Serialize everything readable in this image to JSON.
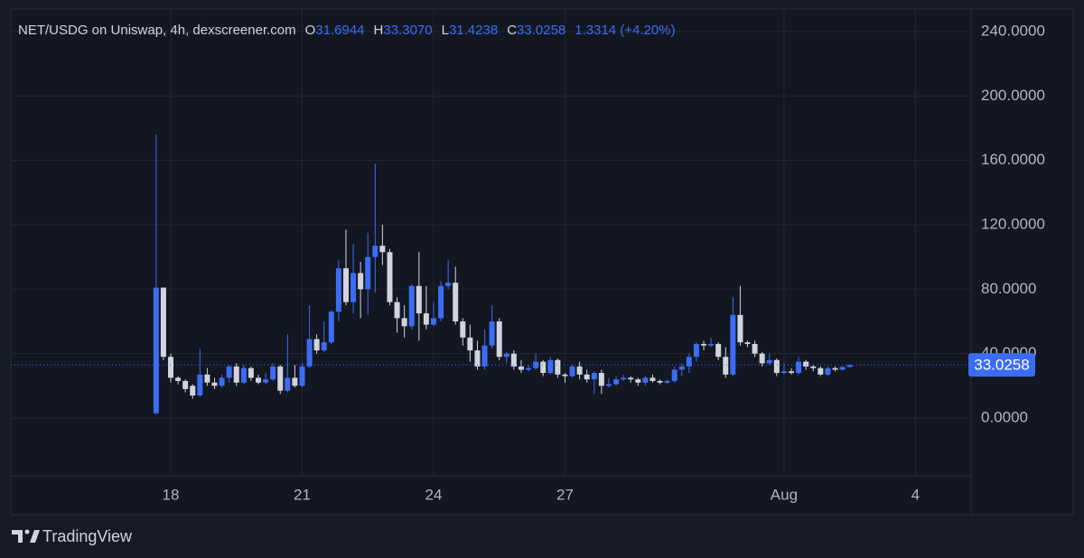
{
  "chart_data": {
    "type": "candlestick",
    "title": "NET/USDG on Uniswap, 4h, dexscreener.com",
    "ohlc_legend": [
      {
        "key": "O",
        "text": "31.6944"
      },
      {
        "key": "H",
        "text": "33.3070"
      },
      {
        "key": "L",
        "text": "31.4238"
      },
      {
        "key": "C",
        "text": "33.0258"
      }
    ],
    "change": "1.3314 (+4.20%)",
    "up_color": "#3b6cf5",
    "down_color": "#d1d4dc",
    "grid": true,
    "xlim": [
      14.35,
      36.27
    ],
    "xticks": [
      18,
      21,
      24,
      27,
      {
        "value": 32,
        "label": "Aug"
      },
      {
        "value": 35,
        "label": "4"
      }
    ],
    "ylim": [
      -35.9,
      254
    ],
    "yticks": [
      {
        "value": 0,
        "label": "0.0000"
      },
      {
        "value": 40,
        "label": "40.0000"
      },
      {
        "value": 80,
        "label": "80.0000"
      },
      {
        "value": 120,
        "label": "120.0000"
      },
      {
        "value": 160,
        "label": "160.0000"
      },
      {
        "value": 200,
        "label": "200.0000"
      },
      {
        "value": 240,
        "label": "240.0000"
      }
    ],
    "last_price": {
      "value": 33.0258,
      "label": "33.0258"
    },
    "x": [
      17.667,
      17.833,
      18,
      18.167,
      18.333,
      18.5,
      18.667,
      18.833,
      19,
      19.167,
      19.333,
      19.5,
      19.667,
      19.833,
      20,
      20.167,
      20.333,
      20.5,
      20.667,
      20.833,
      21,
      21.167,
      21.333,
      21.5,
      21.667,
      21.833,
      22,
      22.167,
      22.333,
      22.5,
      22.667,
      22.833,
      23,
      23.167,
      23.333,
      23.5,
      23.667,
      23.833,
      24,
      24.167,
      24.333,
      24.5,
      24.667,
      24.833,
      25,
      25.167,
      25.333,
      25.5,
      25.667,
      25.833,
      26,
      26.167,
      26.333,
      26.5,
      26.667,
      26.833,
      27,
      27.167,
      27.333,
      27.5,
      27.667,
      27.833,
      28,
      28.167,
      28.333,
      28.5,
      28.667,
      28.833,
      29,
      29.167,
      29.333,
      29.5,
      29.667,
      29.833,
      30,
      30.167,
      30.333,
      30.5,
      30.667,
      30.833,
      31,
      31.167,
      31.333,
      31.5,
      31.667,
      31.833,
      32,
      32.167,
      32.333,
      32.5,
      32.667,
      32.833,
      33,
      33.167,
      33.333,
      33.5
    ],
    "open": [
      3,
      81,
      38,
      25,
      23,
      20,
      14,
      27,
      22,
      20,
      25,
      32,
      22,
      31,
      25,
      22,
      24,
      32,
      17,
      25,
      20,
      32,
      49,
      42,
      47,
      66,
      93,
      72,
      90,
      80,
      100,
      107,
      103,
      72,
      62,
      57,
      82,
      65,
      58,
      62,
      82,
      84,
      60,
      50,
      42,
      32,
      45,
      60,
      38,
      40,
      32,
      30,
      31,
      35,
      28,
      36,
      27,
      26,
      32,
      27,
      24,
      28,
      20,
      21,
      24,
      25,
      24,
      22,
      25,
      23,
      22,
      23,
      30,
      32,
      38,
      46,
      45,
      46,
      38,
      27,
      64,
      47,
      46,
      40,
      34,
      36,
      28,
      29,
      28,
      35,
      32,
      31,
      27,
      31,
      30,
      31.6944
    ],
    "high": [
      176,
      81,
      40,
      26,
      24,
      21,
      43,
      31,
      25,
      27,
      33,
      34,
      33,
      32,
      27,
      28,
      34,
      33,
      52,
      33,
      34,
      70,
      52,
      60,
      67,
      98,
      117,
      108,
      97,
      115,
      158,
      120,
      105,
      75,
      70,
      83,
      103,
      82,
      72,
      85,
      98,
      94,
      62,
      58,
      48,
      55,
      70,
      62,
      41,
      42,
      36,
      33,
      40,
      36,
      38,
      37,
      28,
      33,
      35,
      30,
      29,
      30,
      25,
      26,
      27,
      26,
      25,
      26,
      27,
      24,
      24,
      32,
      34,
      40,
      47,
      48,
      50,
      47,
      44,
      75,
      82,
      48,
      48,
      41,
      40,
      37,
      34,
      31,
      38,
      36,
      33,
      32,
      32,
      32,
      32,
      33.307
    ],
    "low": [
      2,
      36,
      22,
      21,
      16,
      12,
      13,
      20,
      18,
      19,
      22,
      20,
      21,
      23,
      21,
      21,
      23,
      15,
      16,
      19,
      19,
      31,
      40,
      41,
      46,
      60,
      70,
      65,
      62,
      64,
      78,
      95,
      70,
      53,
      50,
      55,
      48,
      55,
      57,
      60,
      80,
      58,
      45,
      35,
      30,
      30,
      43,
      36,
      34,
      30,
      28,
      29,
      30,
      26,
      27,
      25,
      22,
      25,
      24,
      22,
      15,
      15,
      19,
      20,
      23,
      22,
      20,
      20,
      22,
      21,
      21,
      22,
      26,
      28,
      35,
      42,
      44,
      36,
      25,
      26,
      45,
      44,
      38,
      32,
      33,
      26,
      27,
      27,
      27,
      30,
      29,
      26,
      26,
      29,
      29.5,
      31.4238
    ],
    "close": [
      81,
      38,
      25,
      23,
      18,
      14,
      27,
      22,
      20,
      25,
      32,
      22,
      31,
      25,
      22,
      24,
      32,
      17,
      25,
      20,
      32,
      49,
      42,
      47,
      66,
      93,
      72,
      90,
      80,
      100,
      107,
      103,
      72,
      62,
      57,
      82,
      65,
      58,
      62,
      82,
      84,
      60,
      50,
      42,
      32,
      45,
      60,
      38,
      40,
      32,
      30,
      31,
      35,
      28,
      36,
      27,
      26,
      32,
      27,
      24,
      28,
      20,
      21,
      24,
      25,
      24,
      22,
      25,
      23,
      22,
      23,
      30,
      32,
      38,
      46,
      45,
      46,
      38,
      27,
      64,
      47,
      46,
      40,
      34,
      36,
      28,
      29,
      28,
      35,
      32,
      31,
      27,
      31,
      30,
      31.7,
      33.0258
    ]
  },
  "branding": {
    "name": "TradingView"
  }
}
